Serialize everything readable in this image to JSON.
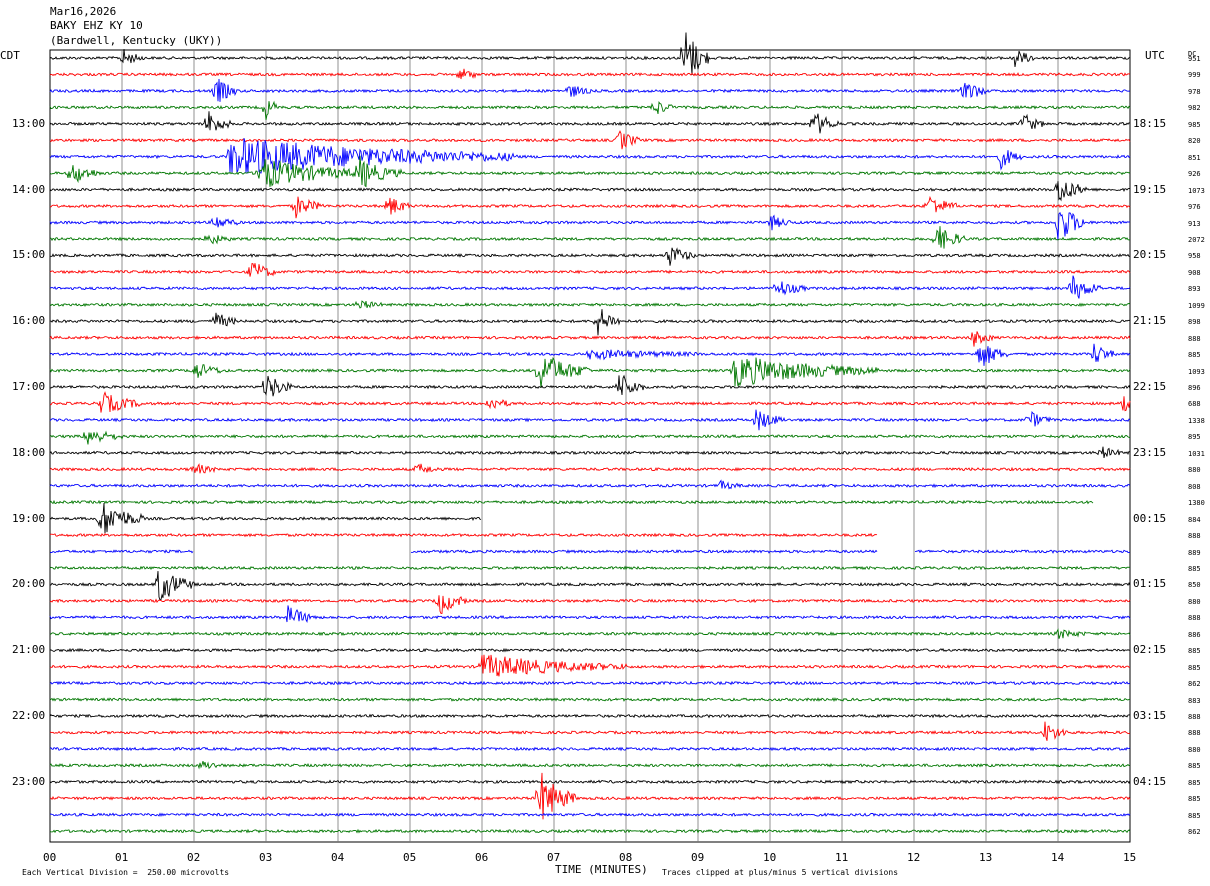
{
  "header": {
    "date": "Mar16,2026",
    "station": "BAKY EHZ KY 10",
    "location": "(Bardwell, Kentucky (UKY))"
  },
  "left_zone_label": "CDT",
  "right_zone_label": "UTC",
  "dc_header": "DC",
  "footer": {
    "scale": "Each Vertical Division =  250.00 microvolts",
    "clip": "Traces clipped at plus/minus 5 vertical divisions"
  },
  "colors": {
    "black": "#000000",
    "red": "#ff0000",
    "blue": "#0000ff",
    "green": "#007700",
    "grid": "#777777"
  },
  "chart_data": {
    "type": "line",
    "title": "BAKY EHZ KY 10",
    "xlabel": "TIME (MINUTES)",
    "xlim": [
      0,
      15
    ],
    "x_tick_labels": [
      "00",
      "01",
      "02",
      "03",
      "04",
      "05",
      "06",
      "07",
      "08",
      "09",
      "10",
      "11",
      "12",
      "13",
      "14",
      "15"
    ],
    "left_hour_labels": [
      "13:00",
      "14:00",
      "15:00",
      "16:00",
      "17:00",
      "18:00",
      "19:00",
      "20:00",
      "21:00",
      "22:00",
      "23:00"
    ],
    "right_hour_labels": [
      "18:15",
      "19:15",
      "20:15",
      "21:15",
      "22:15",
      "23:15",
      "00:15",
      "01:15",
      "02:15",
      "03:15",
      "04:15"
    ],
    "trace_color_cycle": [
      "black",
      "red",
      "blue",
      "green"
    ],
    "dc_offsets": [
      "951",
      "999",
      "978",
      "982",
      "985",
      "820",
      "851",
      "926",
      "1073",
      "976",
      "913",
      "2072",
      "958",
      "908",
      "893",
      "1099",
      "898",
      "888",
      "885",
      "1093",
      "896",
      "688",
      "1338",
      "895",
      "1031",
      "880",
      "808",
      "1380",
      "884",
      "888",
      "889",
      "885",
      "850",
      "880",
      "888",
      "886",
      "885",
      "885",
      "862",
      "883",
      "888",
      "888",
      "880",
      "885",
      "885",
      "885",
      "885",
      "862"
    ],
    "events": [
      {
        "trace": 0,
        "minute": 8.8,
        "amp": 4.5,
        "dur": 0.35
      },
      {
        "trace": 0,
        "minute": 1.0,
        "amp": 1.2,
        "dur": 0.3
      },
      {
        "trace": 0,
        "minute": 13.4,
        "amp": 1.2,
        "dur": 0.3
      },
      {
        "trace": 1,
        "minute": 5.7,
        "amp": 1.0,
        "dur": 0.25
      },
      {
        "trace": 2,
        "minute": 2.3,
        "amp": 2.0,
        "dur": 0.3
      },
      {
        "trace": 2,
        "minute": 7.2,
        "amp": 1.0,
        "dur": 0.3
      },
      {
        "trace": 2,
        "minute": 12.7,
        "amp": 1.8,
        "dur": 0.3
      },
      {
        "trace": 3,
        "minute": 3.0,
        "amp": 1.5,
        "dur": 0.2
      },
      {
        "trace": 3,
        "minute": 8.4,
        "amp": 1.2,
        "dur": 0.25
      },
      {
        "trace": 4,
        "minute": 2.2,
        "amp": 1.8,
        "dur": 0.3
      },
      {
        "trace": 4,
        "minute": 10.6,
        "amp": 1.8,
        "dur": 0.35
      },
      {
        "trace": 4,
        "minute": 13.5,
        "amp": 1.5,
        "dur": 0.3
      },
      {
        "trace": 5,
        "minute": 7.9,
        "amp": 1.5,
        "dur": 0.3
      },
      {
        "trace": 6,
        "minute": 2.5,
        "amp": 2.5,
        "dur": 4.0
      },
      {
        "trace": 6,
        "minute": 13.2,
        "amp": 1.5,
        "dur": 0.3
      },
      {
        "trace": 7,
        "minute": 0.3,
        "amp": 1.5,
        "dur": 0.4
      },
      {
        "trace": 7,
        "minute": 2.9,
        "amp": 2.0,
        "dur": 1.5
      },
      {
        "trace": 7,
        "minute": 4.3,
        "amp": 1.8,
        "dur": 0.6
      },
      {
        "trace": 8,
        "minute": 14.0,
        "amp": 2.0,
        "dur": 0.4
      },
      {
        "trace": 9,
        "minute": 3.4,
        "amp": 1.5,
        "dur": 0.4
      },
      {
        "trace": 9,
        "minute": 4.7,
        "amp": 1.5,
        "dur": 0.3
      },
      {
        "trace": 9,
        "minute": 12.2,
        "amp": 1.5,
        "dur": 0.4
      },
      {
        "trace": 10,
        "minute": 2.3,
        "amp": 1.0,
        "dur": 0.3
      },
      {
        "trace": 10,
        "minute": 10.0,
        "amp": 1.0,
        "dur": 0.3
      },
      {
        "trace": 10,
        "minute": 14.0,
        "amp": 3.0,
        "dur": 0.4
      },
      {
        "trace": 11,
        "minute": 2.2,
        "amp": 0.8,
        "dur": 0.3
      },
      {
        "trace": 11,
        "minute": 12.3,
        "amp": 2.0,
        "dur": 0.4
      },
      {
        "trace": 12,
        "minute": 8.6,
        "amp": 1.5,
        "dur": 0.35
      },
      {
        "trace": 13,
        "minute": 2.8,
        "amp": 1.5,
        "dur": 0.35
      },
      {
        "trace": 14,
        "minute": 10.1,
        "amp": 1.2,
        "dur": 0.4
      },
      {
        "trace": 14,
        "minute": 14.2,
        "amp": 1.8,
        "dur": 0.4
      },
      {
        "trace": 15,
        "minute": 4.3,
        "amp": 0.6,
        "dur": 0.3
      },
      {
        "trace": 16,
        "minute": 2.3,
        "amp": 1.2,
        "dur": 0.3
      },
      {
        "trace": 16,
        "minute": 7.6,
        "amp": 2.0,
        "dur": 0.35
      },
      {
        "trace": 17,
        "minute": 12.8,
        "amp": 1.2,
        "dur": 0.3
      },
      {
        "trace": 18,
        "minute": 12.9,
        "amp": 2.0,
        "dur": 0.4
      },
      {
        "trace": 18,
        "minute": 14.5,
        "amp": 1.5,
        "dur": 0.3
      },
      {
        "trace": 18,
        "minute": 7.5,
        "amp": 0.6,
        "dur": 1.5
      },
      {
        "trace": 19,
        "minute": 2.0,
        "amp": 1.2,
        "dur": 0.4
      },
      {
        "trace": 19,
        "minute": 6.8,
        "amp": 2.5,
        "dur": 0.7
      },
      {
        "trace": 19,
        "minute": 9.5,
        "amp": 2.0,
        "dur": 2.0
      },
      {
        "trace": 20,
        "minute": 3.0,
        "amp": 2.0,
        "dur": 0.35
      },
      {
        "trace": 20,
        "minute": 7.9,
        "amp": 2.0,
        "dur": 0.35
      },
      {
        "trace": 21,
        "minute": 0.7,
        "amp": 1.5,
        "dur": 0.6
      },
      {
        "trace": 21,
        "minute": 6.1,
        "amp": 1.0,
        "dur": 0.3
      },
      {
        "trace": 21,
        "minute": 14.9,
        "amp": 1.2,
        "dur": 0.2
      },
      {
        "trace": 22,
        "minute": 9.8,
        "amp": 1.5,
        "dur": 0.4
      },
      {
        "trace": 22,
        "minute": 13.6,
        "amp": 1.2,
        "dur": 0.3
      },
      {
        "trace": 23,
        "minute": 0.5,
        "amp": 1.2,
        "dur": 0.5
      },
      {
        "trace": 24,
        "minute": 14.6,
        "amp": 0.8,
        "dur": 0.3
      },
      {
        "trace": 25,
        "minute": 2.0,
        "amp": 0.8,
        "dur": 0.3
      },
      {
        "trace": 25,
        "minute": 5.1,
        "amp": 0.8,
        "dur": 0.3
      },
      {
        "trace": 26,
        "minute": 9.3,
        "amp": 0.6,
        "dur": 0.3
      },
      {
        "trace": 28,
        "minute": 0.7,
        "amp": 2.5,
        "dur": 0.6
      },
      {
        "trace": 32,
        "minute": 1.5,
        "amp": 2.5,
        "dur": 0.5
      },
      {
        "trace": 33,
        "minute": 5.4,
        "amp": 1.8,
        "dur": 0.4
      },
      {
        "trace": 34,
        "minute": 3.3,
        "amp": 1.5,
        "dur": 0.4
      },
      {
        "trace": 35,
        "minute": 14.0,
        "amp": 0.6,
        "dur": 0.4
      },
      {
        "trace": 37,
        "minute": 6.0,
        "amp": 1.5,
        "dur": 2.0
      },
      {
        "trace": 41,
        "minute": 13.8,
        "amp": 1.5,
        "dur": 0.35
      },
      {
        "trace": 43,
        "minute": 2.1,
        "amp": 0.6,
        "dur": 0.3
      },
      {
        "trace": 45,
        "minute": 6.8,
        "amp": 3.5,
        "dur": 0.5
      }
    ],
    "data_gaps": [
      {
        "trace": 28,
        "from": 6.0,
        "to": 15
      },
      {
        "trace": 29,
        "from": 11.5,
        "to": 15
      },
      {
        "trace": 30,
        "from": 2.0,
        "to": 5.0
      },
      {
        "trace": 30,
        "from": 11.5,
        "to": 12.0
      },
      {
        "trace": 27,
        "from": 14.5,
        "to": 15
      }
    ],
    "grid": true
  }
}
